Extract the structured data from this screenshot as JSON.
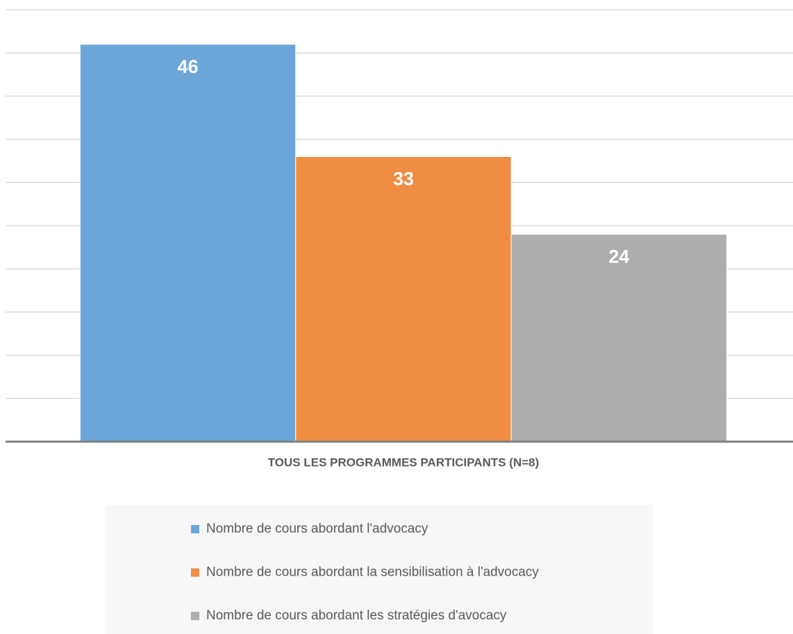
{
  "chart_data": {
    "type": "bar",
    "categories": [
      "TOUS LES PROGRAMMES PARTICIPANTS (N=8)"
    ],
    "series": [
      {
        "name": "Nombre de cours abordant l'advocacy",
        "color": "#6ca6d9",
        "values": [
          46
        ]
      },
      {
        "name": "Nombre de cours abordant la sensibilisation à l'advocacy",
        "color": "#ef8d45",
        "values": [
          33
        ]
      },
      {
        "name": "Nombre de cours abordant les stratégies d'avocacy",
        "color": "#adadad",
        "values": [
          24
        ]
      }
    ],
    "ylim": [
      0,
      50
    ],
    "yticks": [
      0,
      5,
      10,
      15,
      20,
      25,
      30,
      35,
      40,
      45,
      50
    ],
    "grid": true,
    "legend": "bottom"
  }
}
